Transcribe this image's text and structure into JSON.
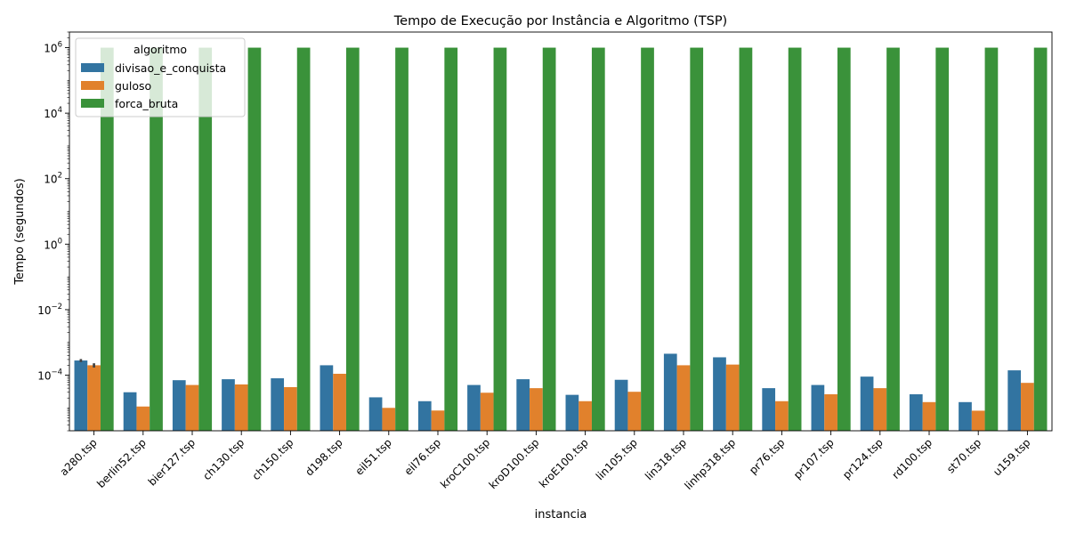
{
  "chart_data": {
    "type": "bar",
    "title": "Tempo de Execução por Instância e Algoritmo (TSP)",
    "xlabel": "instancia",
    "ylabel": "Tempo (segundos)",
    "yscale": "log",
    "ylim": [
      2e-06,
      3000000
    ],
    "yticks": [
      {
        "value": 0.0001,
        "base": "10",
        "exp": "−4"
      },
      {
        "value": 0.01,
        "base": "10",
        "exp": "−2"
      },
      {
        "value": 1,
        "base": "10",
        "exp": "0"
      },
      {
        "value": 100,
        "base": "10",
        "exp": "2"
      },
      {
        "value": 10000,
        "base": "10",
        "exp": "4"
      },
      {
        "value": 1000000,
        "base": "10",
        "exp": "6"
      }
    ],
    "legend": {
      "title": "algoritmo",
      "placement": "top-left"
    },
    "categories": [
      "a280.tsp",
      "berlin52.tsp",
      "bier127.tsp",
      "ch130.tsp",
      "ch150.tsp",
      "d198.tsp",
      "eil51.tsp",
      "eil76.tsp",
      "kroC100.tsp",
      "kroD100.tsp",
      "kroE100.tsp",
      "lin105.tsp",
      "lin318.tsp",
      "linhp318.tsp",
      "pr76.tsp",
      "pr107.tsp",
      "pr124.tsp",
      "rd100.tsp",
      "st70.tsp",
      "u159.tsp"
    ],
    "series": [
      {
        "name": "divisao_e_conquista",
        "color": "#3274a1",
        "values": [
          0.00028,
          3e-05,
          7e-05,
          7.5e-05,
          8e-05,
          0.0002,
          2.1e-05,
          1.6e-05,
          5e-05,
          7.5e-05,
          2.5e-05,
          7.2e-05,
          0.00045,
          0.00035,
          4e-05,
          5e-05,
          9e-05,
          2.6e-05,
          1.5e-05,
          0.00014
        ],
        "error": [
          [
            0.00025,
            0.00031
          ],
          null,
          null,
          null,
          null,
          null,
          null,
          null,
          null,
          null,
          null,
          null,
          null,
          null,
          null,
          null,
          null,
          null,
          null,
          null
        ]
      },
      {
        "name": "guloso",
        "color": "#e1812c",
        "values": [
          0.0002,
          1.1e-05,
          5e-05,
          5.2e-05,
          4.3e-05,
          0.00011,
          1e-05,
          8.3e-06,
          2.9e-05,
          4e-05,
          1.6e-05,
          3.1e-05,
          0.0002,
          0.00021,
          1.6e-05,
          2.6e-05,
          4e-05,
          1.5e-05,
          8.2e-06,
          5.8e-05
        ],
        "error": [
          [
            0.00017,
            0.00023
          ],
          null,
          null,
          null,
          null,
          null,
          null,
          null,
          null,
          null,
          null,
          null,
          null,
          null,
          null,
          null,
          null,
          null,
          null,
          null
        ]
      },
      {
        "name": "forca_bruta",
        "color": "#3a923a",
        "values": [
          1000000,
          1000000,
          1000000,
          1000000,
          1000000,
          1000000,
          1000000,
          1000000,
          1000000,
          1000000,
          1000000,
          1000000,
          1000000,
          1000000,
          1000000,
          1000000,
          1000000,
          1000000,
          1000000,
          1000000
        ],
        "error": null
      }
    ]
  }
}
